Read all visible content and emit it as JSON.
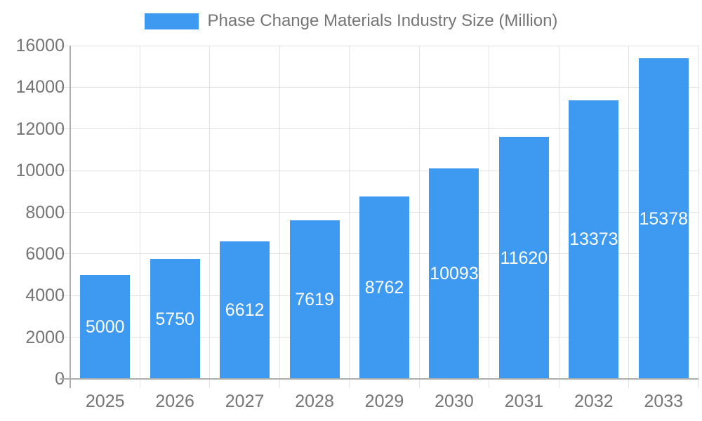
{
  "legend": {
    "label": "Phase Change Materials Industry Size (Million)"
  },
  "chart_data": {
    "type": "bar",
    "title": "Phase Change Materials Industry Size (Million)",
    "categories": [
      "2025",
      "2026",
      "2027",
      "2028",
      "2029",
      "2030",
      "2031",
      "2032",
      "2033"
    ],
    "values": [
      5000,
      5750,
      6612,
      7619,
      8762,
      10093,
      11620,
      13373,
      15378
    ],
    "series": [
      {
        "name": "Phase Change Materials Industry Size (Million)",
        "values": [
          5000,
          5750,
          6612,
          7619,
          8762,
          10093,
          11620,
          13373,
          15378
        ]
      }
    ],
    "xlabel": "",
    "ylabel": "",
    "ylim": [
      0,
      16000
    ],
    "yticks": [
      0,
      2000,
      4000,
      6000,
      8000,
      10000,
      12000,
      14000,
      16000
    ],
    "grid": true,
    "legend_position": "top",
    "bar_labels_inside": true,
    "colors": {
      "bar": "#3D9AF0",
      "bar_label": "#FFFFFF",
      "axis_text": "#757575",
      "gridline": "#E2E2E2",
      "axis_line": "#ADADAD"
    }
  }
}
